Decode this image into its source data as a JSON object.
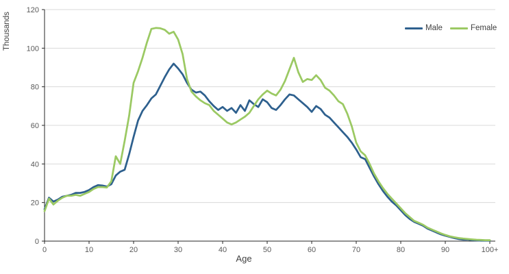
{
  "chart": {
    "y_axis_title": "Thousands",
    "x_axis_title": "Age",
    "y_ticks": [
      0,
      20,
      40,
      60,
      80,
      100,
      120
    ],
    "x_ticks": [
      0,
      10,
      20,
      30,
      40,
      50,
      60,
      70,
      80,
      90,
      100
    ],
    "x_tick_labels": [
      "0",
      "10",
      "20",
      "30",
      "40",
      "50",
      "60",
      "70",
      "80",
      "90",
      "100+"
    ],
    "colors": {
      "male_line": "#2e608e",
      "female_line": "#9bc963",
      "gridline": "#d9d9d9",
      "axis": "#262626",
      "tick_text": "#595959",
      "title_text": "#404040",
      "background": "#ffffff"
    }
  },
  "chart_data": {
    "type": "line",
    "title": "",
    "xlabel": "Age",
    "ylabel": "Thousands",
    "x_unit": "years of age, 100 means 100+",
    "xlim": [
      0,
      100
    ],
    "ylim": [
      0,
      120
    ],
    "grid": "horizontal-only",
    "legend_position": "top-right",
    "x": [
      0,
      1,
      2,
      3,
      4,
      5,
      6,
      7,
      8,
      9,
      10,
      11,
      12,
      13,
      14,
      15,
      16,
      17,
      18,
      19,
      20,
      21,
      22,
      23,
      24,
      25,
      26,
      27,
      28,
      29,
      30,
      31,
      32,
      33,
      34,
      35,
      36,
      37,
      38,
      39,
      40,
      41,
      42,
      43,
      44,
      45,
      46,
      47,
      48,
      49,
      50,
      51,
      52,
      53,
      54,
      55,
      56,
      57,
      58,
      59,
      60,
      61,
      62,
      63,
      64,
      65,
      66,
      67,
      68,
      69,
      70,
      71,
      72,
      73,
      74,
      75,
      76,
      77,
      78,
      79,
      80,
      81,
      82,
      83,
      84,
      85,
      86,
      87,
      88,
      89,
      90,
      91,
      92,
      93,
      94,
      95,
      96,
      97,
      98,
      99,
      100
    ],
    "series": [
      {
        "name": "Male",
        "color": "#2e608e",
        "values": [
          16.5,
          22.5,
          20.5,
          21.5,
          23,
          23.5,
          24,
          25,
          25,
          25.5,
          26.5,
          28,
          29,
          28.8,
          28.3,
          29.5,
          34,
          36,
          37,
          45,
          54,
          62.5,
          67.5,
          70.5,
          74,
          76,
          80.5,
          85,
          89,
          92,
          89.5,
          86.5,
          82,
          78.5,
          77,
          77.5,
          75.5,
          72.5,
          70,
          68,
          69.5,
          67.5,
          69,
          66.5,
          70.5,
          67.5,
          73,
          71,
          69.5,
          73.5,
          72,
          69,
          68,
          70.5,
          73.5,
          76,
          75.5,
          73.5,
          71.5,
          69.5,
          67,
          70,
          68.5,
          65.5,
          64,
          61.5,
          59,
          56.5,
          54,
          51,
          47.5,
          43.5,
          42.5,
          38,
          33.5,
          29.5,
          26,
          23,
          20.5,
          18.5,
          16,
          13.5,
          11.5,
          10,
          9,
          8,
          6.5,
          5.5,
          4.5,
          3.5,
          2.8,
          2.2,
          1.6,
          1.1,
          0.8,
          0.8,
          0.5,
          0.4,
          0.3,
          0.3,
          0.3
        ]
      },
      {
        "name": "Female",
        "color": "#9bc963",
        "values": [
          15.5,
          22,
          19,
          21,
          22.5,
          23.5,
          23.5,
          24,
          23.5,
          24.5,
          25.5,
          27,
          28,
          28,
          27.8,
          31,
          44,
          40,
          52,
          65,
          82,
          88,
          95,
          103,
          110,
          110.5,
          110.3,
          109.5,
          107.5,
          108.5,
          104.5,
          97,
          84,
          77.5,
          75,
          73,
          71.5,
          70.5,
          67.5,
          65.5,
          63.5,
          61.5,
          60.5,
          61.5,
          63,
          64.5,
          66.5,
          70,
          73.5,
          76,
          78,
          76.5,
          75.5,
          78.5,
          83,
          89,
          95,
          87.5,
          82.5,
          84,
          83.5,
          86,
          83.5,
          79.5,
          78,
          75.5,
          72.5,
          71,
          66,
          59.5,
          51,
          46.5,
          44.5,
          40,
          35,
          31,
          27.5,
          24.5,
          22,
          19.5,
          17,
          14.5,
          12.5,
          10.5,
          9.5,
          8.5,
          7,
          6,
          5,
          4,
          3.2,
          2.5,
          2,
          1.6,
          1.3,
          1.1,
          0.9,
          0.7,
          0.6,
          0.5,
          0.5
        ]
      }
    ]
  }
}
